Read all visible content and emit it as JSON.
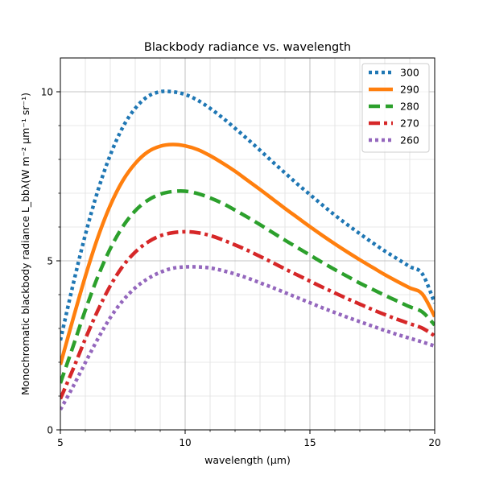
{
  "chart_data": {
    "type": "line",
    "title": "Blackbody radiance vs. wavelength",
    "xlabel": "wavelength (μm)",
    "ylabel": "Monochromatic blackbody radiance L_bbλ(W m⁻² μm⁻¹ sr⁻¹)",
    "xlim": [
      5,
      20
    ],
    "ylim": [
      0,
      11
    ],
    "x_ticks": [
      5,
      10,
      15,
      20
    ],
    "y_ticks": [
      0,
      5,
      10
    ],
    "x_minor_grid": [
      6,
      7,
      8,
      9,
      11,
      12,
      13,
      14,
      16,
      17,
      18,
      19
    ],
    "y_minor_grid": [
      1,
      2,
      3,
      4,
      6,
      7,
      8,
      9
    ],
    "grid": true,
    "legend_position": "top-right",
    "x": [
      5,
      5.5,
      6,
      6.5,
      7,
      7.5,
      8,
      8.5,
      9,
      9.5,
      10,
      10.5,
      11,
      11.5,
      12,
      12.5,
      13,
      13.5,
      14,
      14.5,
      15,
      15.5,
      16,
      16.5,
      17,
      17.5,
      18,
      18.5,
      19,
      19.5,
      20
    ],
    "series": [
      {
        "name": "300",
        "color": "#1f77b4",
        "style": "dotted",
        "values": [
          2.65,
          4.27,
          5.77,
          7.07,
          8.13,
          8.95,
          9.51,
          9.86,
          10.0,
          10.0,
          9.92,
          9.75,
          9.51,
          9.23,
          8.92,
          8.6,
          8.27,
          7.93,
          7.6,
          7.27,
          6.96,
          6.65,
          6.35,
          6.07,
          5.8,
          5.54,
          5.29,
          5.06,
          4.83,
          4.62,
          3.75
        ]
      },
      {
        "name": "290",
        "color": "#ff7f0e",
        "style": "solid",
        "values": [
          1.93,
          3.26,
          4.54,
          5.69,
          6.64,
          7.37,
          7.88,
          8.22,
          8.39,
          8.44,
          8.4,
          8.29,
          8.11,
          7.89,
          7.65,
          7.38,
          7.11,
          6.83,
          6.55,
          6.28,
          6.01,
          5.75,
          5.5,
          5.26,
          5.03,
          4.81,
          4.59,
          4.39,
          4.2,
          4.02,
          3.35
        ]
      },
      {
        "name": "280",
        "color": "#2ca02c",
        "style": "dashed",
        "values": [
          1.38,
          2.45,
          3.54,
          4.53,
          5.36,
          6.01,
          6.48,
          6.79,
          6.97,
          7.05,
          7.06,
          6.99,
          6.86,
          6.7,
          6.5,
          6.29,
          6.07,
          5.84,
          5.61,
          5.39,
          5.17,
          4.95,
          4.74,
          4.54,
          4.34,
          4.16,
          3.98,
          3.81,
          3.64,
          3.49,
          3.1
        ]
      },
      {
        "name": "270",
        "color": "#d62728",
        "style": "dashdot",
        "values": [
          0.92,
          1.78,
          2.69,
          3.53,
          4.26,
          4.84,
          5.26,
          5.55,
          5.74,
          5.83,
          5.86,
          5.83,
          5.75,
          5.62,
          5.47,
          5.31,
          5.13,
          4.95,
          4.76,
          4.58,
          4.4,
          4.22,
          4.05,
          3.88,
          3.72,
          3.56,
          3.41,
          3.27,
          3.14,
          3.01,
          2.78
        ]
      },
      {
        "name": "260",
        "color": "#9467bd",
        "style": "dotted",
        "values": [
          0.6,
          1.27,
          1.99,
          2.69,
          3.32,
          3.82,
          4.2,
          4.47,
          4.66,
          4.78,
          4.82,
          4.82,
          4.79,
          4.71,
          4.61,
          4.49,
          4.35,
          4.21,
          4.06,
          3.91,
          3.76,
          3.61,
          3.47,
          3.33,
          3.2,
          3.07,
          2.94,
          2.82,
          2.71,
          2.6,
          2.48
        ]
      }
    ]
  }
}
